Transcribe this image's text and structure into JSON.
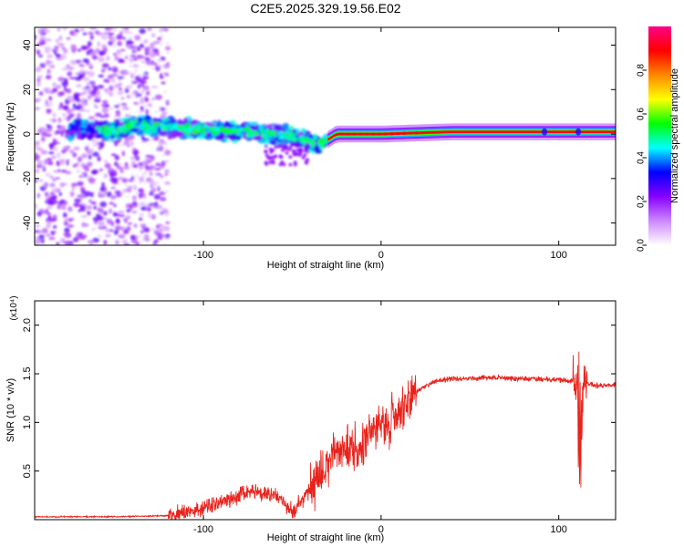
{
  "figure": {
    "title": "C2E5.2025.329.19.56.E02"
  },
  "chart_data": [
    {
      "type": "heatmap",
      "xlabel": "Height of straight line (km)",
      "ylabel": "Frequency (Hz)",
      "xlim": [
        -195,
        132
      ],
      "ylim": [
        -50,
        48
      ],
      "xticks": [
        -100,
        0,
        100
      ],
      "yticks": [
        -40,
        -20,
        0,
        20,
        40
      ],
      "ridge": [
        {
          "x": -160,
          "y": 2
        },
        {
          "x": -150,
          "y": 1
        },
        {
          "x": -140,
          "y": 4
        },
        {
          "x": -120,
          "y": 3
        },
        {
          "x": -100,
          "y": 2
        },
        {
          "x": -80,
          "y": 1
        },
        {
          "x": -60,
          "y": 0
        },
        {
          "x": -45,
          "y": -2
        },
        {
          "x": -35,
          "y": -5
        },
        {
          "x": -25,
          "y": 0
        },
        {
          "x": 0,
          "y": 0
        },
        {
          "x": 40,
          "y": 1
        },
        {
          "x": 90,
          "y": 1
        },
        {
          "x": 132,
          "y": 1
        }
      ],
      "colorbar": {
        "label": "Normalized spectral amplitude",
        "range": [
          0,
          1
        ],
        "ticks": [
          0.0,
          0.2,
          0.4,
          0.6,
          0.8
        ],
        "tick_labels": [
          "0.0",
          "0.2",
          "0.4",
          "0.6",
          "0.8"
        ],
        "colors": [
          "#ffffff",
          "#cc88ff",
          "#8800ff",
          "#0000ff",
          "#00ffff",
          "#00ff00",
          "#ffff00",
          "#ff8800",
          "#ff0000",
          "#ff0088"
        ]
      }
    },
    {
      "type": "line",
      "xlabel": "Height of straight line (km)",
      "ylabel": "SNR (10 * v/v)",
      "scale_label": "(x10⁴)",
      "xlim": [
        -195,
        132
      ],
      "ylim": [
        0,
        2.25
      ],
      "xticks": [
        -100,
        0,
        100
      ],
      "yticks": [
        0.5,
        1.0,
        1.5,
        2.0
      ],
      "ytick_labels": [
        "0.5",
        "1.0",
        "1.5",
        "2.0"
      ],
      "series": [
        {
          "name": "SNR",
          "color": "#e8231c",
          "x": [
            -195,
            -150,
            -120,
            -110,
            -100,
            -90,
            -80,
            -75,
            -70,
            -60,
            -55,
            -50,
            -45,
            -40,
            -35,
            -30,
            -25,
            -20,
            -15,
            -10,
            -5,
            0,
            5,
            10,
            15,
            20,
            30,
            40,
            60,
            80,
            100,
            110,
            112,
            114,
            120,
            132
          ],
          "y": [
            0.03,
            0.03,
            0.04,
            0.07,
            0.12,
            0.18,
            0.25,
            0.3,
            0.28,
            0.25,
            0.18,
            0.08,
            0.18,
            0.32,
            0.42,
            0.6,
            0.75,
            0.72,
            0.72,
            0.8,
            0.92,
            0.95,
            1.0,
            1.1,
            1.2,
            1.32,
            1.42,
            1.45,
            1.46,
            1.45,
            1.44,
            1.42,
            0.7,
            1.4,
            1.38,
            1.38
          ]
        }
      ]
    }
  ]
}
